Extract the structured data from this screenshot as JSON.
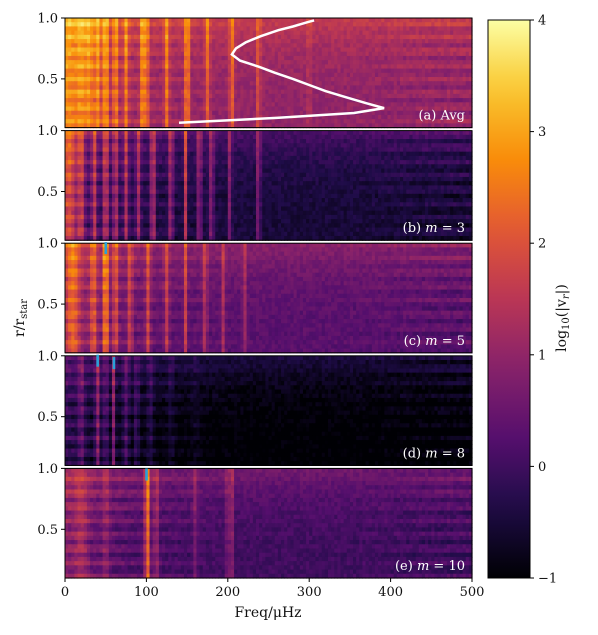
{
  "chart_data": {
    "type": "heatmap",
    "xlabel": "Freq/μHz",
    "ylabel": "r/r",
    "ylabel_sub": "star",
    "xlim": [
      0,
      500
    ],
    "x_ticks": [
      "0",
      "100",
      "200",
      "300",
      "400",
      "500"
    ],
    "ylim": [
      0.1,
      1.0
    ],
    "y_ticks": [
      "0.5",
      "1.0"
    ],
    "colorbar": {
      "label": "log",
      "label_sub": "10",
      "label_expr": "(|v",
      "label_expr_sub": "r",
      "label_end": "|)",
      "range": [
        -1,
        4
      ],
      "ticks": [
        "−1",
        "0",
        "1",
        "2",
        "3",
        "4"
      ]
    },
    "panels": [
      {
        "label": "(a) Avg",
        "y_ticks": [
          "0.5",
          "1.0"
        ],
        "background": 1.2,
        "peaks": [
          [
            5,
            0.9,
            12
          ],
          [
            20,
            1.0,
            6
          ],
          [
            30,
            1.2,
            5
          ],
          [
            40,
            1.3,
            4
          ],
          [
            50,
            1.8,
            3
          ],
          [
            62,
            1.4,
            3
          ],
          [
            75,
            1.2,
            3
          ],
          [
            95,
            1.4,
            3
          ],
          [
            100,
            2.0,
            2
          ],
          [
            125,
            1.3,
            3
          ],
          [
            150,
            1.7,
            3
          ],
          [
            175,
            1.1,
            3
          ],
          [
            205,
            1.2,
            3
          ],
          [
            238,
            1.3,
            2
          ],
          [
            300,
            0.6,
            2
          ]
        ],
        "avg_profile": {
          "r": [
            0.14,
            0.18,
            0.22,
            0.26,
            0.3,
            0.35,
            0.4,
            0.45,
            0.5,
            0.55,
            0.6,
            0.65,
            0.7,
            0.75,
            0.8,
            0.85,
            0.9,
            0.93,
            0.95,
            0.97,
            0.98
          ],
          "freq": [
            140,
            260,
            355,
            392,
            370,
            345,
            320,
            300,
            280,
            258,
            238,
            215,
            205,
            210,
            222,
            240,
            262,
            280,
            290,
            300,
            306
          ]
        }
      },
      {
        "label": "(b) m = 3",
        "m": "3",
        "y_ticks": [
          "0.5",
          "1.0"
        ],
        "background": -0.3,
        "peaks": [
          [
            5,
            1.6,
            10
          ],
          [
            20,
            1.4,
            4
          ],
          [
            36,
            1.5,
            3
          ],
          [
            50,
            1.9,
            3
          ],
          [
            62,
            1.6,
            3
          ],
          [
            75,
            1.5,
            3
          ],
          [
            90,
            1.4,
            3
          ],
          [
            108,
            1.8,
            3
          ],
          [
            130,
            1.5,
            3
          ],
          [
            148,
            1.9,
            2
          ],
          [
            165,
            1.4,
            3
          ],
          [
            180,
            1.3,
            3
          ],
          [
            203,
            1.5,
            2
          ],
          [
            238,
            1.8,
            2
          ]
        ]
      },
      {
        "label": "(c) m = 5",
        "m": "5",
        "y_ticks": [
          "0.5",
          "1.0"
        ],
        "background": 0.5,
        "peaks": [
          [
            10,
            1.2,
            8
          ],
          [
            35,
            1.3,
            4
          ],
          [
            50,
            2.3,
            3
          ],
          [
            62,
            1.4,
            3
          ],
          [
            80,
            1.2,
            3
          ],
          [
            102,
            1.3,
            3
          ],
          [
            125,
            1.1,
            3
          ],
          [
            148,
            1.2,
            2
          ],
          [
            172,
            1.0,
            3
          ],
          [
            195,
            1.0,
            2
          ],
          [
            220,
            1.0,
            2
          ]
        ],
        "markers": [
          {
            "x": 50,
            "r": 0.96
          }
        ]
      },
      {
        "label": "(d) m = 8",
        "m": "8",
        "y_ticks": [
          "0.5",
          "1.0"
        ],
        "background": -0.85,
        "peaks": [
          [
            20,
            0.8,
            4
          ],
          [
            40,
            1.4,
            3
          ],
          [
            50,
            0.9,
            3
          ],
          [
            60,
            1.5,
            2
          ],
          [
            75,
            0.9,
            4
          ],
          [
            88,
            0.8,
            3
          ],
          [
            105,
            0.6,
            4
          ],
          [
            130,
            0.4,
            4
          ],
          [
            160,
            0.2,
            5
          ]
        ],
        "markers": [
          {
            "x": 40,
            "r": 0.96
          },
          {
            "x": 60,
            "r": 0.94
          }
        ]
      },
      {
        "label": "(e) m = 10",
        "m": "10",
        "y_ticks": [
          "0.5",
          "1.0"
        ],
        "background": 0.2,
        "peaks": [
          [
            20,
            0.6,
            8
          ],
          [
            50,
            0.6,
            4
          ],
          [
            100,
            2.2,
            2
          ],
          [
            103,
            1.7,
            2
          ],
          [
            112,
            1.0,
            3
          ],
          [
            160,
            0.6,
            3
          ],
          [
            200,
            1.2,
            2
          ],
          [
            205,
            0.9,
            2
          ]
        ],
        "markers": [
          {
            "x": 100,
            "r": 0.95
          }
        ]
      }
    ]
  }
}
